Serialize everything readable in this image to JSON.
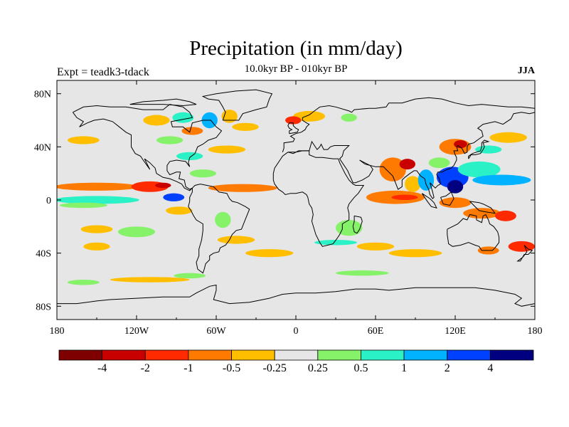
{
  "chart_data": {
    "type": "heatmap",
    "title": "Precipitation (in mm/day)",
    "subtitle": "10.0kyr BP - 010kyr BP",
    "left_label": "Expt = teadk3-tdack",
    "right_label": "JJA",
    "x_range": [
      -180,
      180
    ],
    "y_range": [
      -90,
      90
    ],
    "x_ticks": [
      {
        "value": -180,
        "label": "180"
      },
      {
        "value": -120,
        "label": "120W"
      },
      {
        "value": -60,
        "label": "60W"
      },
      {
        "value": 0,
        "label": "0"
      },
      {
        "value": 60,
        "label": "60E"
      },
      {
        "value": 120,
        "label": "120E"
      },
      {
        "value": 180,
        "label": "180"
      }
    ],
    "y_ticks": [
      {
        "value": 80,
        "label": "80N"
      },
      {
        "value": 40,
        "label": "40N"
      },
      {
        "value": 0,
        "label": "0"
      },
      {
        "value": -40,
        "label": "40S"
      },
      {
        "value": -80,
        "label": "80S"
      }
    ],
    "colorbar": {
      "colors": [
        "#7f0000",
        "#c80000",
        "#ff2a00",
        "#ff7a00",
        "#ffbf00",
        "#e6e6e6",
        "#86f26a",
        "#2af2c6",
        "#00b2ff",
        "#0040ff",
        "#000080"
      ],
      "boundary_labels": [
        "-4",
        "-2",
        "-1",
        "-0.5",
        "-0.25",
        "0.25",
        "0.5",
        "1",
        "2",
        "4"
      ]
    },
    "anomaly_regions": [
      {
        "lon": -150,
        "lat": 10,
        "rlon": 32,
        "rlat": 3,
        "level": 3
      },
      {
        "lon": -110,
        "lat": 10,
        "rlon": 14,
        "rlat": 4,
        "level": 2
      },
      {
        "lon": -100,
        "lat": 11,
        "rlon": 6,
        "rlat": 2,
        "level": 1
      },
      {
        "lon": -40,
        "lat": 9,
        "rlon": 26,
        "rlat": 3,
        "level": 3
      },
      {
        "lon": -150,
        "lat": 0,
        "rlon": 32,
        "rlat": 3,
        "level": 7
      },
      {
        "lon": -160,
        "lat": -4,
        "rlon": 18,
        "rlat": 2,
        "level": 6
      },
      {
        "lon": -92,
        "lat": 2,
        "rlon": 8,
        "rlat": 3,
        "level": 9
      },
      {
        "lon": -88,
        "lat": -8,
        "rlon": 10,
        "rlat": 3,
        "level": 4
      },
      {
        "lon": -150,
        "lat": -22,
        "rlon": 12,
        "rlat": 3,
        "level": 4
      },
      {
        "lon": -120,
        "lat": -24,
        "rlon": 14,
        "rlat": 4,
        "level": 6
      },
      {
        "lon": -150,
        "lat": -35,
        "rlon": 10,
        "rlat": 3,
        "level": 4
      },
      {
        "lon": -160,
        "lat": 45,
        "rlon": 12,
        "rlat": 3,
        "level": 4
      },
      {
        "lon": -105,
        "lat": 60,
        "rlon": 10,
        "rlat": 4,
        "level": 4
      },
      {
        "lon": -85,
        "lat": 62,
        "rlon": 8,
        "rlat": 4,
        "level": 7
      },
      {
        "lon": -78,
        "lat": 52,
        "rlon": 8,
        "rlat": 3,
        "level": 3
      },
      {
        "lon": -65,
        "lat": 60,
        "rlon": 6,
        "rlat": 6,
        "level": 8
      },
      {
        "lon": -50,
        "lat": 63,
        "rlon": 6,
        "rlat": 5,
        "level": 4
      },
      {
        "lon": -38,
        "lat": 55,
        "rlon": 10,
        "rlat": 3,
        "level": 4
      },
      {
        "lon": -95,
        "lat": 45,
        "rlon": 10,
        "rlat": 3,
        "level": 6
      },
      {
        "lon": -80,
        "lat": 33,
        "rlon": 10,
        "rlat": 3,
        "level": 7
      },
      {
        "lon": -52,
        "lat": 38,
        "rlon": 14,
        "rlat": 3,
        "level": 4
      },
      {
        "lon": -70,
        "lat": 20,
        "rlon": 10,
        "rlat": 3,
        "level": 6
      },
      {
        "lon": -55,
        "lat": -15,
        "rlon": 6,
        "rlat": 6,
        "level": 6
      },
      {
        "lon": -45,
        "lat": -30,
        "rlon": 14,
        "rlat": 3,
        "level": 4
      },
      {
        "lon": -20,
        "lat": -40,
        "rlon": 18,
        "rlat": 3,
        "level": 4
      },
      {
        "lon": 10,
        "lat": 63,
        "rlon": 12,
        "rlat": 4,
        "level": 4
      },
      {
        "lon": -2,
        "lat": 60,
        "rlon": 6,
        "rlat": 3,
        "level": 2
      },
      {
        "lon": 40,
        "lat": 62,
        "rlon": 6,
        "rlat": 3,
        "level": 6
      },
      {
        "lon": 40,
        "lat": -21,
        "rlon": 10,
        "rlat": 6,
        "level": 6
      },
      {
        "lon": 30,
        "lat": -32,
        "rlon": 16,
        "rlat": 2,
        "level": 7
      },
      {
        "lon": 75,
        "lat": 2,
        "rlon": 22,
        "rlat": 5,
        "level": 3
      },
      {
        "lon": 82,
        "lat": 2,
        "rlon": 10,
        "rlat": 2,
        "level": 2
      },
      {
        "lon": 73,
        "lat": 23,
        "rlon": 10,
        "rlat": 9,
        "level": 3
      },
      {
        "lon": 84,
        "lat": 27,
        "rlon": 6,
        "rlat": 4,
        "level": 1
      },
      {
        "lon": 88,
        "lat": 12,
        "rlon": 6,
        "rlat": 6,
        "level": 4
      },
      {
        "lon": 98,
        "lat": 15,
        "rlon": 6,
        "rlat": 8,
        "level": 8
      },
      {
        "lon": 118,
        "lat": 17,
        "rlon": 12,
        "rlat": 8,
        "level": 9
      },
      {
        "lon": 120,
        "lat": 10,
        "rlon": 6,
        "rlat": 5,
        "level": 10
      },
      {
        "lon": 138,
        "lat": 23,
        "rlon": 16,
        "rlat": 6,
        "level": 7
      },
      {
        "lon": 155,
        "lat": 15,
        "rlon": 22,
        "rlat": 4,
        "level": 8
      },
      {
        "lon": 120,
        "lat": 40,
        "rlon": 12,
        "rlat": 6,
        "level": 3
      },
      {
        "lon": 124,
        "lat": 42,
        "rlon": 5,
        "rlat": 3,
        "level": 1
      },
      {
        "lon": 145,
        "lat": 38,
        "rlon": 10,
        "rlat": 3,
        "level": 7
      },
      {
        "lon": 160,
        "lat": 47,
        "rlon": 14,
        "rlat": 4,
        "level": 4
      },
      {
        "lon": 108,
        "lat": 28,
        "rlon": 8,
        "rlat": 4,
        "level": 6
      },
      {
        "lon": 120,
        "lat": -2,
        "rlon": 12,
        "rlat": 4,
        "level": 3
      },
      {
        "lon": 140,
        "lat": -10,
        "rlon": 14,
        "rlat": 4,
        "level": 3
      },
      {
        "lon": 158,
        "lat": -12,
        "rlon": 8,
        "rlat": 4,
        "level": 2
      },
      {
        "lon": 145,
        "lat": -38,
        "rlon": 8,
        "rlat": 3,
        "level": 3
      },
      {
        "lon": 170,
        "lat": -35,
        "rlon": 10,
        "rlat": 4,
        "level": 2
      },
      {
        "lon": 60,
        "lat": -35,
        "rlon": 14,
        "rlat": 3,
        "level": 4
      },
      {
        "lon": 90,
        "lat": -40,
        "rlon": 20,
        "rlat": 3,
        "level": 4
      },
      {
        "lon": 50,
        "lat": -55,
        "rlon": 20,
        "rlat": 2,
        "level": 6
      },
      {
        "lon": -110,
        "lat": -60,
        "rlon": 30,
        "rlat": 2,
        "level": 4
      },
      {
        "lon": -80,
        "lat": -57,
        "rlon": 12,
        "rlat": 2,
        "level": 6
      },
      {
        "lon": -160,
        "lat": -62,
        "rlon": 12,
        "rlat": 2,
        "level": 6
      }
    ]
  }
}
